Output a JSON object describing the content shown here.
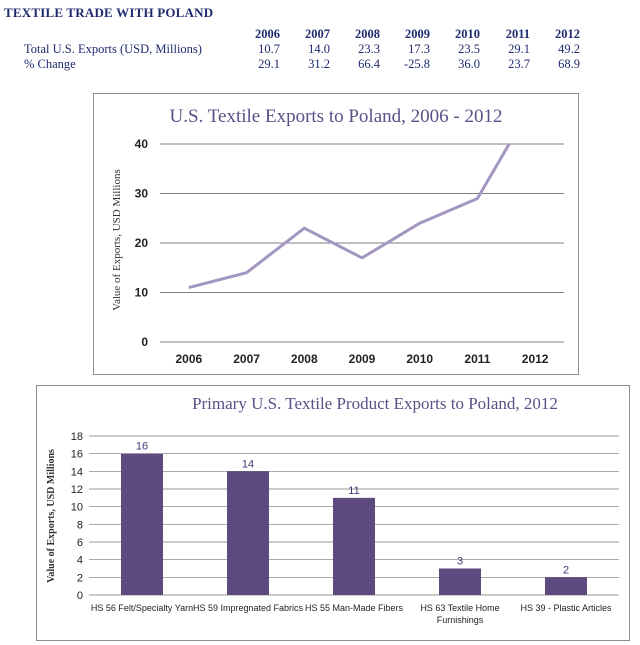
{
  "header": {
    "title": "TEXTILE TRADE WITH POLAND"
  },
  "table": {
    "years": [
      "2006",
      "2007",
      "2008",
      "2009",
      "2010",
      "2011",
      "2012"
    ],
    "rows": [
      {
        "label": "Total U.S. Exports (USD, Millions)",
        "values": [
          "10.7",
          "14.0",
          "23.3",
          "17.3",
          "23.5",
          "29.1",
          "49.2"
        ]
      },
      {
        "label": "% Change",
        "values": [
          "29.1",
          "31.2",
          "66.4",
          "-25.8",
          "36.0",
          "23.7",
          "68.9"
        ]
      }
    ]
  },
  "chart_data": [
    {
      "type": "line",
      "title": "U.S. Textile Exports to Poland, 2006 - 2012",
      "ylabel": "Value of Exports, USD Millions",
      "xlabel": "",
      "x": [
        "2006",
        "2007",
        "2008",
        "2009",
        "2010",
        "2011",
        "2012"
      ],
      "series": [
        {
          "values": [
            11,
            14,
            23,
            17,
            24,
            29,
            49
          ]
        }
      ],
      "ylim": [
        0,
        40
      ],
      "yticks": [
        0,
        10,
        20,
        30,
        40
      ],
      "grid": true,
      "colors": {
        "line": "#a396c0",
        "title": "#5a4f86"
      }
    },
    {
      "type": "bar",
      "title": "Primary U.S. Textile Product Exports to Poland, 2012",
      "ylabel": "Value of Exports, USD Millions",
      "xlabel": "",
      "categories": [
        "HS 56 Felt/Specialty Yarn",
        "HS 59 Impregnated Fabrics",
        "HS 55 Man-Made Fibers",
        "HS 63 Textile Home Furnishings",
        "HS 39 - Plastic Articles"
      ],
      "values": [
        16,
        14,
        11,
        3,
        2
      ],
      "data_labels": [
        "16",
        "14",
        "11",
        "3",
        "2"
      ],
      "ylim": [
        0,
        18
      ],
      "yticks": [
        0,
        2,
        4,
        6,
        8,
        10,
        12,
        14,
        16,
        18
      ],
      "grid": true,
      "colors": {
        "bar": "#5d4a7f",
        "title": "#5a4f86",
        "data_label": "#3f3a77"
      }
    }
  ]
}
